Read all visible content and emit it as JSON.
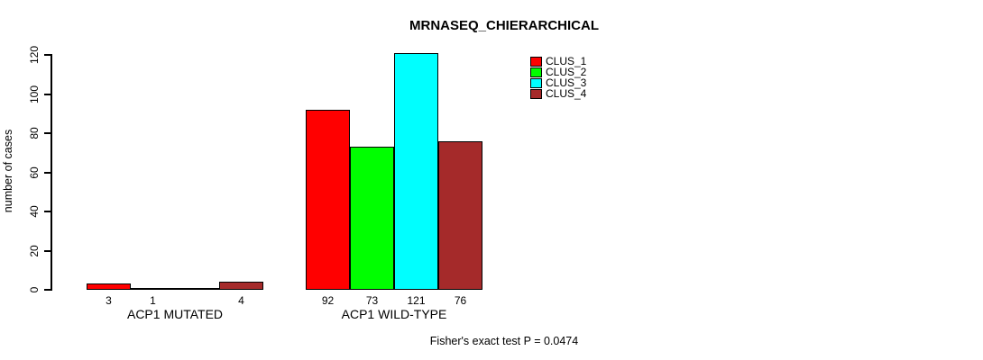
{
  "title": "MRNASEQ_CHIERARCHICAL",
  "footnote": "Fisher's exact test P = 0.0474",
  "y_axis": {
    "label": "number of cases"
  },
  "legend": {
    "items": [
      {
        "label": "CLUS_1",
        "color": "#FF0000"
      },
      {
        "label": "CLUS_2",
        "color": "#00FF00"
      },
      {
        "label": "CLUS_3",
        "color": "#00FFFF"
      },
      {
        "label": "CLUS_4",
        "color": "#A52A2A"
      }
    ]
  },
  "chart_data": {
    "type": "bar",
    "title": "MRNASEQ_CHIERARCHICAL",
    "xlabel": "",
    "ylabel": "number of cases",
    "ylim": [
      0,
      120
    ],
    "yticks": [
      0,
      20,
      40,
      60,
      80,
      100,
      120
    ],
    "grid": false,
    "legend_position": "top-right",
    "series": [
      "CLUS_1",
      "CLUS_2",
      "CLUS_3",
      "CLUS_4"
    ],
    "colors": [
      "#FF0000",
      "#00FF00",
      "#00FFFF",
      "#A52A2A"
    ],
    "bar_border_color": "#000000",
    "groups": [
      {
        "label": "ACP1 MUTATED",
        "values": [
          3,
          1,
          0,
          4
        ],
        "bar_labels": [
          "3",
          "1",
          "",
          "4"
        ]
      },
      {
        "label": "ACP1 WILD-TYPE",
        "values": [
          92,
          73,
          121,
          76
        ],
        "bar_labels": [
          "92",
          "73",
          "121",
          "76"
        ]
      }
    ],
    "annotation": "Fisher's exact test P = 0.0474"
  }
}
